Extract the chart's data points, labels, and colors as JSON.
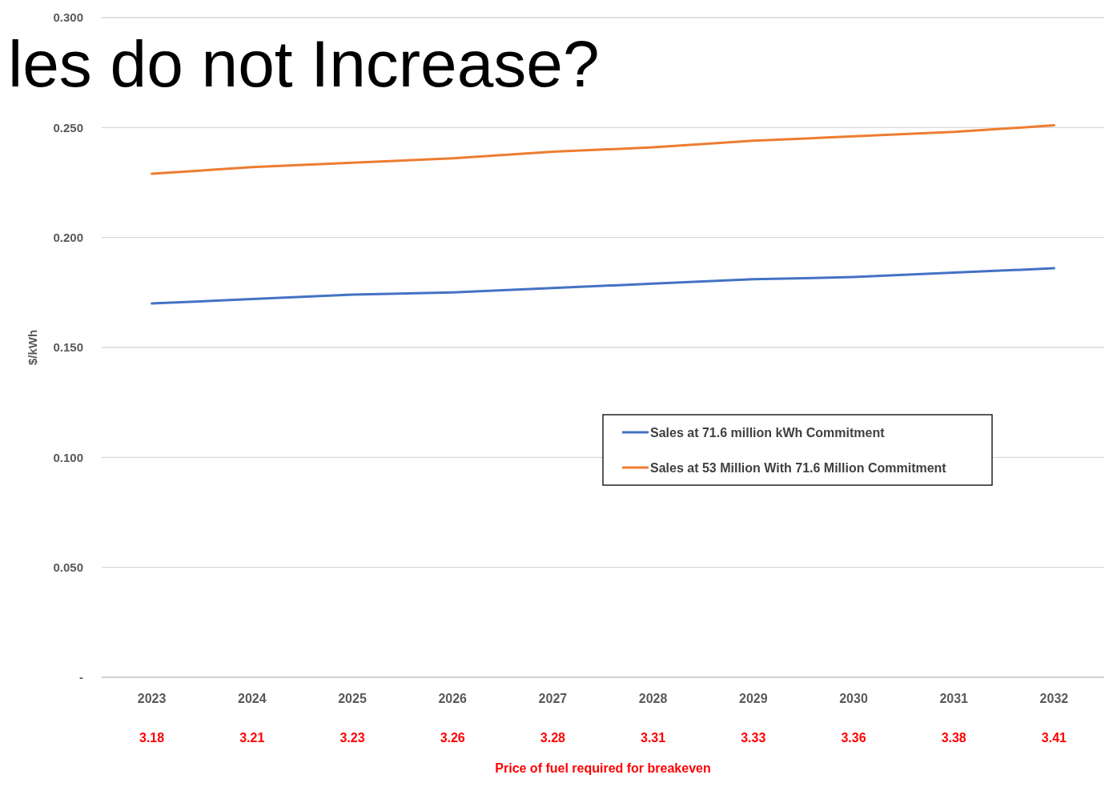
{
  "chart_data": {
    "type": "line",
    "title": "les do not Increase?",
    "ylabel": "$/kWh",
    "xlabel": "Price of fuel required for breakeven",
    "categories": [
      "2023",
      "2024",
      "2025",
      "2026",
      "2027",
      "2028",
      "2029",
      "2030",
      "2031",
      "2032"
    ],
    "series": [
      {
        "name": "Sales at 71.6 million kWh Commitment",
        "color": "#4472c4",
        "values": [
          0.17,
          0.172,
          0.174,
          0.175,
          0.177,
          0.179,
          0.181,
          0.182,
          0.184,
          0.186
        ]
      },
      {
        "name": "Sales at 53 Million With 71.6 Million Commitment",
        "color": "#ed7d31",
        "values": [
          0.229,
          0.232,
          0.234,
          0.236,
          0.239,
          0.241,
          0.244,
          0.246,
          0.248,
          0.251
        ]
      }
    ],
    "annotations": [
      "3.18",
      "3.21",
      "3.23",
      "3.26",
      "3.28",
      "3.31",
      "3.33",
      "3.36",
      "3.38",
      "3.41"
    ],
    "ylim": [
      0,
      0.3
    ],
    "yticks": [
      {
        "value": 0,
        "label": "-"
      },
      {
        "value": 0.05,
        "label": "0.050"
      },
      {
        "value": 0.1,
        "label": "0.100"
      },
      {
        "value": 0.15,
        "label": "0.150"
      },
      {
        "value": 0.2,
        "label": "0.200"
      },
      {
        "value": 0.25,
        "label": "0.250"
      },
      {
        "value": 0.3,
        "label": "0.300"
      }
    ],
    "grid": "y",
    "legend": "right",
    "marker": "none",
    "line_style": "solid"
  }
}
